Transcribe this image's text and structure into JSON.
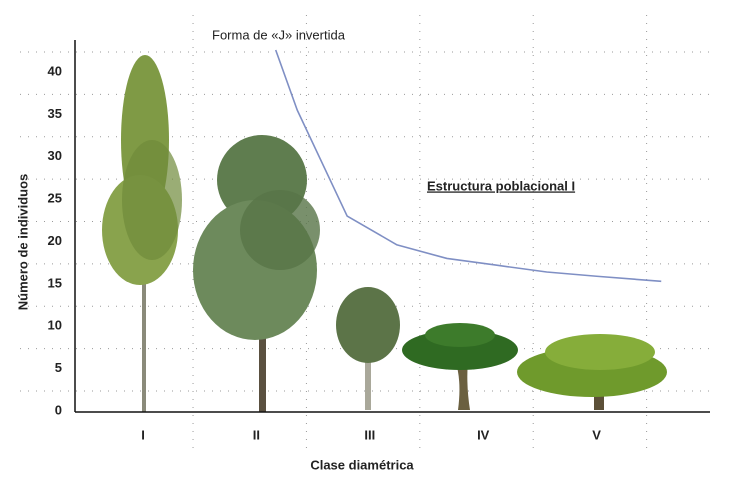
{
  "chart_data": {
    "type": "line",
    "annotations": [
      "Forma de «J» invertida",
      "Estructura poblacional I"
    ],
    "xlabel": "Clase diamétrica",
    "ylabel": "Número de individuos",
    "xlim": [
      0.4,
      6
    ],
    "xticks": [
      {
        "value": 1,
        "label": "I"
      },
      {
        "value": 2,
        "label": "II"
      },
      {
        "value": 3,
        "label": "III"
      },
      {
        "value": 4,
        "label": "IV"
      },
      {
        "value": 5,
        "label": "V"
      }
    ],
    "ylim": [
      0,
      40
    ],
    "yticks": [
      0,
      5,
      10,
      15,
      20,
      25,
      30,
      35,
      40
    ],
    "grid": true,
    "series": [
      {
        "color": "#7f8fc4",
        "x": [
          2.17,
          2.36,
          2.8,
          3.24,
          3.68,
          4.12,
          4.56,
          5.0,
          5.57
        ],
        "values": [
          42.6,
          35.5,
          23,
          19.6,
          18,
          17.2,
          16.4,
          15.9,
          15.3
        ]
      }
    ]
  }
}
